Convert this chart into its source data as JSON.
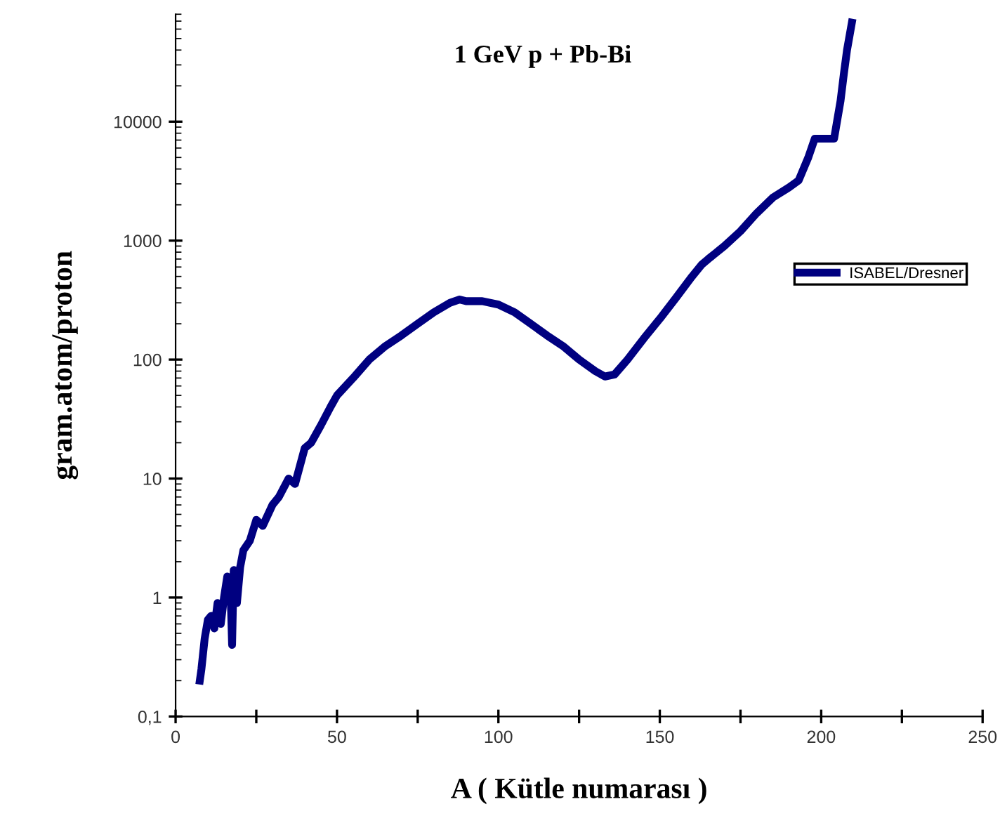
{
  "chart_data": {
    "type": "line",
    "title": "1 GeV p + Pb-Bi",
    "xlabel": "A ( Kütle numarası )",
    "ylabel": "gram.atom/proton",
    "log": "y",
    "grid": false,
    "legend": "right",
    "marker": "none",
    "line_style": "solid",
    "xlim": [
      0,
      250
    ],
    "xticks": [
      0,
      {
        "value": 25,
        "label": null
      },
      50,
      {
        "value": 75,
        "label": null
      },
      100,
      {
        "value": 125,
        "label": null
      },
      150,
      {
        "value": 175,
        "label": null
      },
      200,
      {
        "value": 225,
        "label": null
      },
      250
    ],
    "ylim": [
      0.1,
      80000
    ],
    "yticks": [
      {
        "value": 0.1,
        "label": "0,1"
      },
      1,
      10,
      100,
      1000,
      10000
    ],
    "series": [
      {
        "name": "ISABEL/Dresner",
        "color": "#000080",
        "x": [
          7.5,
          8,
          9,
          10,
          11,
          12,
          13,
          14,
          15,
          16,
          17,
          17.5,
          18,
          19,
          20,
          21,
          23,
          25,
          27,
          30,
          32,
          35,
          37,
          40,
          42,
          45,
          48,
          50,
          55,
          60,
          65,
          70,
          75,
          80,
          85,
          88,
          90,
          95,
          100,
          105,
          110,
          115,
          120,
          125,
          130,
          133,
          136,
          140,
          145,
          150,
          155,
          160,
          163,
          165,
          170,
          175,
          180,
          185,
          190,
          193,
          196,
          198,
          202,
          204,
          206,
          207,
          208,
          209.5
        ],
        "values": [
          0.2,
          0.25,
          0.45,
          0.65,
          0.7,
          0.55,
          0.9,
          0.6,
          1.0,
          1.5,
          1.2,
          0.4,
          1.7,
          0.9,
          1.8,
          2.5,
          3,
          4.5,
          4,
          6,
          7,
          10,
          9,
          18,
          20,
          28,
          40,
          50,
          70,
          100,
          130,
          160,
          200,
          250,
          300,
          320,
          310,
          310,
          290,
          250,
          200,
          160,
          130,
          100,
          80,
          72,
          75,
          100,
          150,
          220,
          330,
          500,
          630,
          700,
          900,
          1200,
          1700,
          2300,
          2800,
          3200,
          5000,
          7200,
          7200,
          7200,
          15000,
          25000,
          40000,
          68000
        ]
      }
    ]
  }
}
